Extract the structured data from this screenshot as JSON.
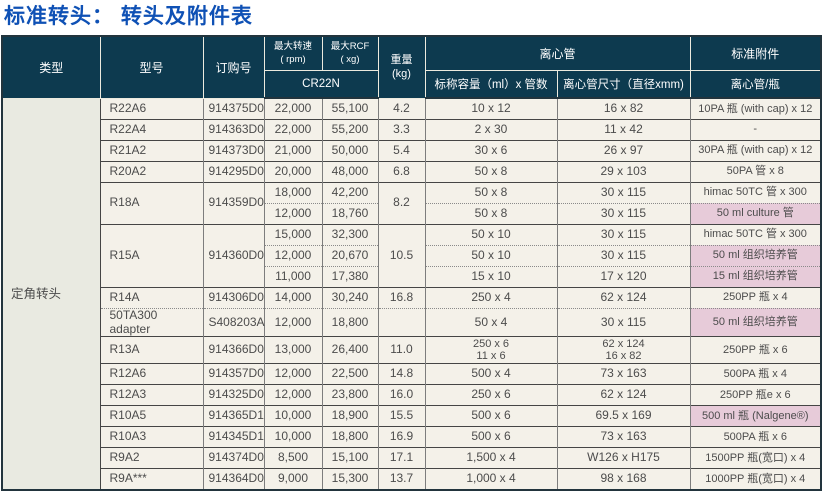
{
  "page": {
    "title": "标准转头：  转头及附件表"
  },
  "colors": {
    "title_blue": "#0f51b5",
    "header_bg": "#0d3a4f",
    "header_text": "#ffffff",
    "row_bg": "#f4f1e9",
    "type_col_bg": "#e9eae1",
    "highlight_pink": "#e7cbd9"
  },
  "table": {
    "type_label": "定角转头",
    "headers": {
      "type": "类型",
      "model": "型号",
      "order_no": "订购号",
      "max_speed": "最大转速\n( rpm)",
      "max_rcf": "最大RCF\n( xg)",
      "weight": "重量\n(kg)",
      "machine": "CR22N",
      "tube_group": "离心管",
      "capacity": "标称容量（ml）x 管数",
      "tube_size": "离心管尺寸（直径xmm)",
      "accessory_group": "标准附件",
      "accessory": "离心管/瓶"
    },
    "rows": [
      {
        "model": "R22A6",
        "model_span": 1,
        "order": "914375D0",
        "order_span": 1,
        "rpm": "22,000",
        "rcf": "55,100",
        "weight": "4.2",
        "weight_span": 1,
        "capacity": "10 x 12",
        "size": "16 x 82",
        "accessory": "10PA 瓶 (with cap) x 12",
        "pink": false,
        "top": "solid"
      },
      {
        "model": "R22A4",
        "model_span": 1,
        "order": "914363D0",
        "order_span": 1,
        "rpm": "22,000",
        "rcf": "55,200",
        "weight": "3.3",
        "weight_span": 1,
        "capacity": "2 x 30",
        "size": "11 x 42",
        "accessory": "-",
        "pink": false,
        "top": "solid"
      },
      {
        "model": "R21A2",
        "model_span": 1,
        "order": "914373D0",
        "order_span": 1,
        "rpm": "21,000",
        "rcf": "50,000",
        "weight": "5.4",
        "weight_span": 1,
        "capacity": "30 x 6",
        "size": "26 x 97",
        "accessory": "30PA 瓶 (with cap) x 12",
        "pink": false,
        "top": "solid"
      },
      {
        "model": "R20A2",
        "model_span": 1,
        "order": "914295D0",
        "order_span": 1,
        "rpm": "20,000",
        "rcf": "48,000",
        "weight": "6.8",
        "weight_span": 1,
        "capacity": "50 x 8",
        "size": "29 x 103",
        "accessory": "50PA 管 x 8",
        "pink": false,
        "top": "solid"
      },
      {
        "model": "R18A",
        "model_span": 2,
        "order": "914359D0",
        "order_span": 2,
        "rpm": "18,000",
        "rcf": "42,200",
        "weight": "8.2",
        "weight_span": 2,
        "capacity": "50 x 8",
        "size": "30 x 115",
        "accessory": "himac 50TC 管 x 300",
        "pink": false,
        "top": "solid"
      },
      {
        "rpm": "12,000",
        "rcf": "18,760",
        "capacity": "50 x 8",
        "size": "30 x 115",
        "accessory": "50 ml culture 管",
        "pink": true,
        "top": "dotted"
      },
      {
        "model": "R15A",
        "model_span": 3,
        "order": "914360D0",
        "order_span": 3,
        "rpm": "15,000",
        "rcf": "32,300",
        "weight": "10.5",
        "weight_span": 3,
        "capacity": "50 x 10",
        "size": "30 x 115",
        "accessory": "himac 50TC 管 x 300",
        "pink": false,
        "top": "solid"
      },
      {
        "rpm": "12,000",
        "rcf": "20,670",
        "capacity": "50 x 10",
        "size": "30 x 115",
        "accessory": "50 ml 组织培养管",
        "pink": true,
        "top": "dotted"
      },
      {
        "rpm": "11,000",
        "rcf": "17,380",
        "capacity": "15 x 10",
        "size": "17 x 120",
        "accessory": "15 ml 组织培养管",
        "pink": true,
        "top": "dotted"
      },
      {
        "model": "R14A",
        "model_span": 1,
        "order": "914306D0",
        "order_span": 1,
        "rpm": "14,000",
        "rcf": "30,240",
        "weight": "16.8",
        "weight_span": 1,
        "capacity": "250 x 4",
        "size": "62 x 124",
        "accessory": "250PP 瓶 x 4",
        "pink": false,
        "top": "solid"
      },
      {
        "model": "50TA300 adapter",
        "model_span": 1,
        "order": "S408203A",
        "order_span": 1,
        "rpm": "12,000",
        "rcf": "18,800",
        "weight": "",
        "weight_span": 1,
        "capacity": "50 x 4",
        "size": "30 x 115",
        "accessory": "50 ml 组织培养管",
        "pink": true,
        "top": "dotted"
      },
      {
        "model": "R13A",
        "model_span": 1,
        "order": "914366D0",
        "order_span": 1,
        "rpm": "13,000",
        "rcf": "26,400",
        "weight": "11.0",
        "weight_span": 1,
        "capacity": "250 x 6\n11 x 6",
        "size": "62 x 124\n16 x 82",
        "accessory": "250PP 瓶 x 6",
        "pink": false,
        "top": "solid",
        "tall": true
      },
      {
        "model": "R12A6",
        "model_span": 1,
        "order": "914357D0",
        "order_span": 1,
        "rpm": "12,000",
        "rcf": "22,500",
        "weight": "14.8",
        "weight_span": 1,
        "capacity": "500 x 4",
        "size": "73 x 163",
        "accessory": "500PA 瓶 x 4",
        "pink": false,
        "top": "solid"
      },
      {
        "model": "R12A3",
        "model_span": 1,
        "order": "914325D0",
        "order_span": 1,
        "rpm": "12,000",
        "rcf": "23,800",
        "weight": "16.0",
        "weight_span": 1,
        "capacity": "250 x 6",
        "size": "62 x 124",
        "accessory": "250PP 瓶e x 6",
        "pink": false,
        "top": "solid"
      },
      {
        "model": "R10A5",
        "model_span": 1,
        "order": "914365D1",
        "order_span": 1,
        "rpm": "10,000",
        "rcf": "18,900",
        "weight": "15.5",
        "weight_span": 1,
        "capacity": "500 x 6",
        "size": "69.5 x 169",
        "accessory": "500 ml 瓶 (Nalgene®)",
        "pink": true,
        "top": "solid"
      },
      {
        "model": "R10A3",
        "model_span": 1,
        "order": "914345D1",
        "order_span": 1,
        "rpm": "10,000",
        "rcf": "18,800",
        "weight": "16.9",
        "weight_span": 1,
        "capacity": "500 x 6",
        "size": "73 x 163",
        "accessory": "500PA 瓶 x 6",
        "pink": false,
        "top": "solid"
      },
      {
        "model": "R9A2",
        "model_span": 1,
        "order": "914374D0",
        "order_span": 1,
        "rpm": "8,500",
        "rcf": "15,100",
        "weight": "17.1",
        "weight_span": 1,
        "capacity": "1,500 x 4",
        "size": "W126 x H175",
        "accessory": "1500PP 瓶(宽口) x 4",
        "pink": false,
        "top": "solid"
      },
      {
        "model": "R9A***",
        "model_span": 1,
        "order": "914364D0",
        "order_span": 1,
        "rpm": "9,000",
        "rcf": "15,300",
        "weight": "13.7",
        "weight_span": 1,
        "capacity": "1,000 x 4",
        "size": "98 x 168",
        "accessory": "1000PP 瓶(宽口) x 4",
        "pink": false,
        "top": "solid"
      }
    ]
  }
}
